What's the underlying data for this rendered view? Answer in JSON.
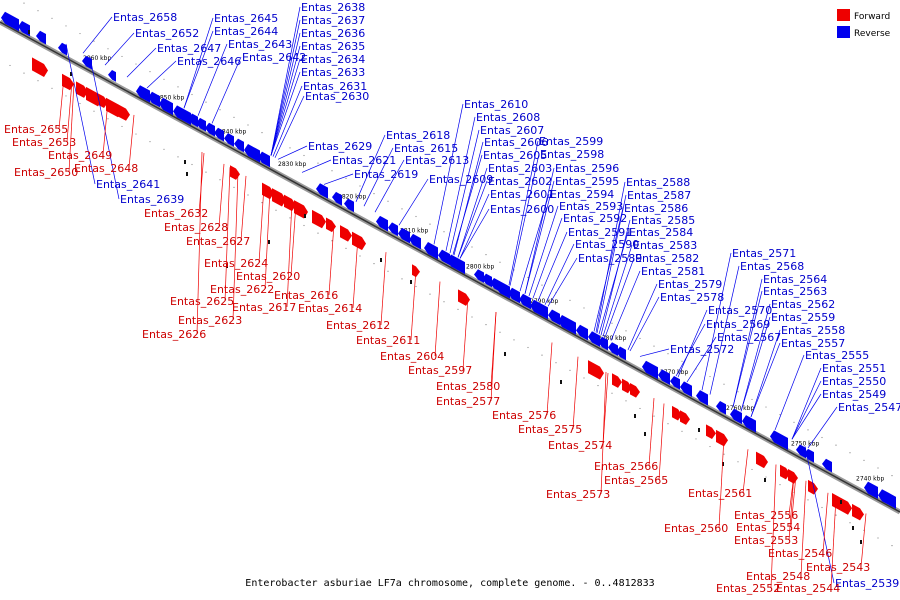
{
  "caption": "Enterobacter asburiae LF7a chromosome, complete genome. - 0..4812833",
  "legend": {
    "forward_label": "Forward",
    "reverse_label": "Reverse",
    "forward_color": "#ee0000",
    "reverse_color": "#0000ee"
  },
  "ticks": [
    "2860 kbp",
    "2850 kbp",
    "2840 kbp",
    "2830 kbp",
    "2820 kbp",
    "2810 kbp",
    "2800 kbp",
    "2790 kbp",
    "2780 kbp",
    "2770 kbp",
    "2760 kbp",
    "2750 kbp",
    "2740 kbp"
  ],
  "reverse_labels": [
    "Entas_2658",
    "Entas_2652",
    "Entas_2647",
    "Entas_2646",
    "Entas_2645",
    "Entas_2644",
    "Entas_2643",
    "Entas_2642",
    "Entas_2638",
    "Entas_2637",
    "Entas_2636",
    "Entas_2635",
    "Entas_2634",
    "Entas_2633",
    "Entas_2631",
    "Entas_2630",
    "Entas_2641",
    "Entas_2639",
    "Entas_2629",
    "Entas_2621",
    "Entas_2619",
    "Entas_2618",
    "Entas_2615",
    "Entas_2613",
    "Entas_2609",
    "Entas_2610",
    "Entas_2608",
    "Entas_2607",
    "Entas_2606",
    "Entas_2605",
    "Entas_2603",
    "Entas_2602",
    "Entas_2601",
    "Entas_2600",
    "Entas_2599",
    "Entas_2598",
    "Entas_2596",
    "Entas_2595",
    "Entas_2594",
    "Entas_2593",
    "Entas_2592",
    "Entas_2591",
    "Entas_2590",
    "Entas_2589",
    "Entas_2588",
    "Entas_2587",
    "Entas_2586",
    "Entas_2585",
    "Entas_2584",
    "Entas_2583",
    "Entas_2582",
    "Entas_2581",
    "Entas_2579",
    "Entas_2578",
    "Entas_2571",
    "Entas_2568",
    "Entas_2564",
    "Entas_2563",
    "Entas_2562",
    "Entas_2570",
    "Entas_2569",
    "Entas_2567",
    "Entas_2572",
    "Entas_2559",
    "Entas_2558",
    "Entas_2557",
    "Entas_2555",
    "Entas_2551",
    "Entas_2550",
    "Entas_2549",
    "Entas_2547",
    "Entas_2539"
  ],
  "forward_labels": [
    "Entas_2655",
    "Entas_2653",
    "Entas_2649",
    "Entas_2648",
    "Entas_2650",
    "Entas_2632",
    "Entas_2628",
    "Entas_2627",
    "Entas_2624",
    "Entas_2620",
    "Entas_2622",
    "Entas_2625",
    "Entas_2617",
    "Entas_2616",
    "Entas_2623",
    "Entas_2626",
    "Entas_2614",
    "Entas_2612",
    "Entas_2611",
    "Entas_2604",
    "Entas_2597",
    "Entas_2580",
    "Entas_2577",
    "Entas_2576",
    "Entas_2575",
    "Entas_2574",
    "Entas_2566",
    "Entas_2565",
    "Entas_2573",
    "Entas_2561",
    "Entas_2560",
    "Entas_2556",
    "Entas_2554",
    "Entas_2553",
    "Entas_2546",
    "Entas_2543",
    "Entas_2548",
    "Entas_2544",
    "Entas_2552"
  ]
}
